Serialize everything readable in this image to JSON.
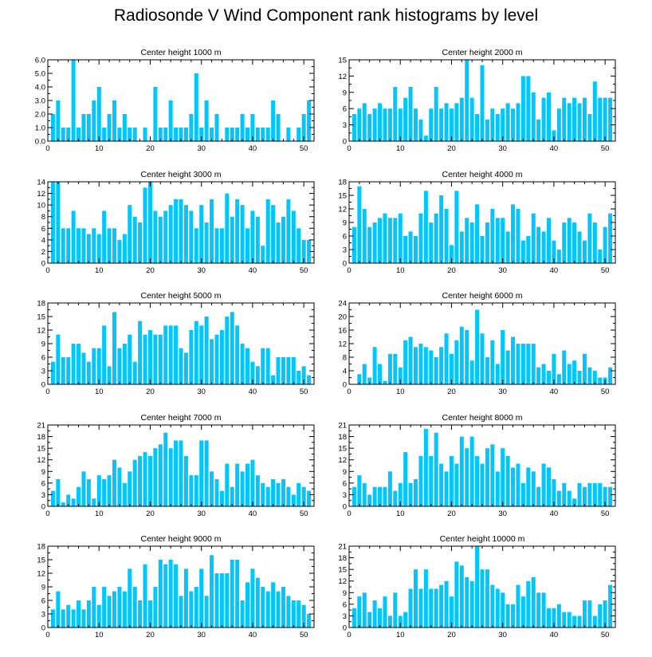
{
  "figure_title": "Radiosonde V Wind Component rank histograms by level",
  "chart_data": [
    {
      "type": "bar",
      "title": "Center height 1000 m",
      "xlabel": "",
      "ylabel": "",
      "xlim": [
        0,
        52
      ],
      "ylim": [
        0,
        6
      ],
      "x_ticks": [
        0,
        10,
        20,
        30,
        40,
        50
      ],
      "y_ticks": [
        0,
        1,
        2,
        3,
        4,
        5,
        6
      ],
      "y_tick_labels": [
        "0.0",
        "1.0",
        "2.0",
        "3.0",
        "4.0",
        "5.0",
        "6.0"
      ],
      "x": [
        1,
        2,
        3,
        4,
        5,
        6,
        7,
        8,
        9,
        10,
        11,
        12,
        13,
        14,
        15,
        16,
        17,
        18,
        19,
        20,
        21,
        22,
        23,
        24,
        25,
        26,
        27,
        28,
        29,
        30,
        31,
        32,
        33,
        34,
        35,
        36,
        37,
        38,
        39,
        40,
        41,
        42,
        43,
        44,
        45,
        46,
        47,
        48,
        49,
        50,
        51
      ],
      "values": [
        2,
        3,
        1,
        1,
        6,
        1,
        2,
        2,
        3,
        4,
        1,
        2,
        3,
        1,
        2,
        1,
        1,
        0,
        1,
        0,
        4,
        1,
        1,
        3,
        1,
        1,
        1,
        2,
        5,
        1,
        3,
        1,
        2,
        0,
        1,
        1,
        1,
        2,
        1,
        2,
        1,
        1,
        1,
        3,
        2,
        0,
        1,
        0,
        1,
        2,
        3
      ]
    },
    {
      "type": "bar",
      "title": "Center height 2000 m",
      "xlabel": "",
      "ylabel": "",
      "xlim": [
        0,
        52
      ],
      "ylim": [
        0,
        15
      ],
      "x_ticks": [
        0,
        10,
        20,
        30,
        40,
        50
      ],
      "y_ticks": [
        0,
        3,
        6,
        9,
        12,
        15
      ],
      "y_tick_labels": [
        "0",
        "3",
        "6",
        "9",
        "12",
        "15"
      ],
      "x": [
        1,
        2,
        3,
        4,
        5,
        6,
        7,
        8,
        9,
        10,
        11,
        12,
        13,
        14,
        15,
        16,
        17,
        18,
        19,
        20,
        21,
        22,
        23,
        24,
        25,
        26,
        27,
        28,
        29,
        30,
        31,
        32,
        33,
        34,
        35,
        36,
        37,
        38,
        39,
        40,
        41,
        42,
        43,
        44,
        45,
        46,
        47,
        48,
        49,
        50,
        51
      ],
      "values": [
        5,
        6,
        7,
        5,
        6,
        7,
        6,
        6,
        10,
        6,
        8,
        10,
        6,
        4,
        1,
        6,
        10,
        6,
        7,
        6,
        7,
        8,
        15,
        8,
        5,
        14,
        4,
        6,
        5,
        6,
        7,
        6,
        7,
        12,
        12,
        9,
        4,
        8,
        9,
        2,
        6,
        8,
        7,
        8,
        7,
        8,
        5,
        11,
        8,
        8,
        8
      ]
    },
    {
      "type": "bar",
      "title": "Center height 3000 m",
      "xlabel": "",
      "ylabel": "",
      "xlim": [
        0,
        52
      ],
      "ylim": [
        0,
        14
      ],
      "x_ticks": [
        0,
        10,
        20,
        30,
        40,
        50
      ],
      "y_ticks": [
        0,
        2,
        4,
        6,
        8,
        10,
        12,
        14
      ],
      "y_tick_labels": [
        "0",
        "2",
        "4",
        "6",
        "8",
        "10",
        "12",
        "14"
      ],
      "x": [
        1,
        2,
        3,
        4,
        5,
        6,
        7,
        8,
        9,
        10,
        11,
        12,
        13,
        14,
        15,
        16,
        17,
        18,
        19,
        20,
        21,
        22,
        23,
        24,
        25,
        26,
        27,
        28,
        29,
        30,
        31,
        32,
        33,
        34,
        35,
        36,
        37,
        38,
        39,
        40,
        41,
        42,
        43,
        44,
        45,
        46,
        47,
        48,
        49,
        50,
        51
      ],
      "values": [
        14,
        14,
        6,
        6,
        9,
        6,
        6,
        5,
        6,
        5,
        9,
        6,
        6,
        4,
        5,
        10,
        8,
        7,
        13,
        14,
        9,
        8,
        9,
        10,
        11,
        11,
        10,
        9,
        6,
        10,
        7,
        11,
        6,
        6,
        12,
        8,
        11,
        10,
        6,
        9,
        8,
        3,
        11,
        10,
        7,
        8,
        11,
        9,
        6,
        4,
        4
      ]
    },
    {
      "type": "bar",
      "title": "Center height 4000 m",
      "xlabel": "",
      "ylabel": "",
      "xlim": [
        0,
        52
      ],
      "ylim": [
        0,
        18
      ],
      "x_ticks": [
        0,
        10,
        20,
        30,
        40,
        50
      ],
      "y_ticks": [
        0,
        3,
        6,
        9,
        12,
        15,
        18
      ],
      "y_tick_labels": [
        "0",
        "3",
        "6",
        "9",
        "12",
        "15",
        "18"
      ],
      "x": [
        1,
        2,
        3,
        4,
        5,
        6,
        7,
        8,
        9,
        10,
        11,
        12,
        13,
        14,
        15,
        16,
        17,
        18,
        19,
        20,
        21,
        22,
        23,
        24,
        25,
        26,
        27,
        28,
        29,
        30,
        31,
        32,
        33,
        34,
        35,
        36,
        37,
        38,
        39,
        40,
        41,
        42,
        43,
        44,
        45,
        46,
        47,
        48,
        49,
        50,
        51
      ],
      "values": [
        8,
        17,
        12,
        8,
        9,
        10,
        11,
        10,
        10,
        11,
        6,
        7,
        6,
        11,
        16,
        9,
        11,
        15,
        12,
        4,
        16,
        7,
        10,
        9,
        13,
        6,
        9,
        12,
        10,
        10,
        7,
        13,
        12,
        5,
        6,
        11,
        8,
        7,
        10,
        5,
        3,
        9,
        10,
        9,
        7,
        5,
        11,
        9,
        3,
        8,
        11
      ]
    },
    {
      "type": "bar",
      "title": "Center height 5000 m",
      "xlabel": "",
      "ylabel": "",
      "xlim": [
        0,
        52
      ],
      "ylim": [
        0,
        18
      ],
      "x_ticks": [
        0,
        10,
        20,
        30,
        40,
        50
      ],
      "y_ticks": [
        0,
        3,
        6,
        9,
        12,
        15,
        18
      ],
      "y_tick_labels": [
        "0",
        "3",
        "6",
        "9",
        "12",
        "15",
        "18"
      ],
      "x": [
        1,
        2,
        3,
        4,
        5,
        6,
        7,
        8,
        9,
        10,
        11,
        12,
        13,
        14,
        15,
        16,
        17,
        18,
        19,
        20,
        21,
        22,
        23,
        24,
        25,
        26,
        27,
        28,
        29,
        30,
        31,
        32,
        33,
        34,
        35,
        36,
        37,
        38,
        39,
        40,
        41,
        42,
        43,
        44,
        45,
        46,
        47,
        48,
        49,
        50,
        51
      ],
      "values": [
        5,
        11,
        6,
        6,
        9,
        9,
        7,
        5,
        8,
        8,
        13,
        4,
        16,
        8,
        9,
        11,
        5,
        14,
        11,
        12,
        11,
        11,
        13,
        13,
        13,
        8,
        7,
        12,
        14,
        13,
        15,
        10,
        11,
        12,
        15,
        16,
        13,
        9,
        8,
        5,
        4,
        8,
        8,
        2,
        6,
        6,
        6,
        6,
        3,
        4,
        2
      ]
    },
    {
      "type": "bar",
      "title": "Center height 6000 m",
      "xlabel": "",
      "ylabel": "",
      "xlim": [
        0,
        52
      ],
      "ylim": [
        0,
        24
      ],
      "x_ticks": [
        0,
        10,
        20,
        30,
        40,
        50
      ],
      "y_ticks": [
        0,
        4,
        8,
        12,
        16,
        20,
        24
      ],
      "y_tick_labels": [
        "0",
        "4",
        "8",
        "12",
        "16",
        "20",
        "24"
      ],
      "x": [
        1,
        2,
        3,
        4,
        5,
        6,
        7,
        8,
        9,
        10,
        11,
        12,
        13,
        14,
        15,
        16,
        17,
        18,
        19,
        20,
        21,
        22,
        23,
        24,
        25,
        26,
        27,
        28,
        29,
        30,
        31,
        32,
        33,
        34,
        35,
        36,
        37,
        38,
        39,
        40,
        41,
        42,
        43,
        44,
        45,
        46,
        47,
        48,
        49,
        50,
        51
      ],
      "values": [
        0,
        3,
        6,
        2,
        11,
        6,
        1,
        9,
        9,
        5,
        13,
        14,
        11,
        12,
        11,
        10,
        8,
        11,
        15,
        9,
        13,
        17,
        16,
        7,
        22,
        15,
        8,
        13,
        6,
        16,
        10,
        14,
        12,
        12,
        12,
        12,
        5,
        6,
        4,
        9,
        3,
        10,
        6,
        7,
        4,
        9,
        5,
        4,
        2,
        2,
        5
      ]
    },
    {
      "type": "bar",
      "title": "Center height 7000 m",
      "xlabel": "",
      "ylabel": "",
      "xlim": [
        0,
        52
      ],
      "ylim": [
        0,
        21
      ],
      "x_ticks": [
        0,
        10,
        20,
        30,
        40,
        50
      ],
      "y_ticks": [
        0,
        3,
        6,
        9,
        12,
        15,
        18,
        21
      ],
      "y_tick_labels": [
        "0",
        "3",
        "6",
        "9",
        "12",
        "15",
        "18",
        "21"
      ],
      "x": [
        1,
        2,
        3,
        4,
        5,
        6,
        7,
        8,
        9,
        10,
        11,
        12,
        13,
        14,
        15,
        16,
        17,
        18,
        19,
        20,
        21,
        22,
        23,
        24,
        25,
        26,
        27,
        28,
        29,
        30,
        31,
        32,
        33,
        34,
        35,
        36,
        37,
        38,
        39,
        40,
        41,
        42,
        43,
        44,
        45,
        46,
        47,
        48,
        49,
        50,
        51
      ],
      "values": [
        4,
        7,
        1,
        3,
        2,
        5,
        9,
        7,
        2,
        8,
        7,
        8,
        12,
        10,
        6,
        9,
        12,
        13,
        14,
        13,
        15,
        16,
        19,
        15,
        17,
        17,
        13,
        8,
        8,
        17,
        17,
        9,
        7,
        4,
        11,
        5,
        11,
        9,
        11,
        12,
        8,
        6,
        5,
        7,
        6,
        7,
        5,
        3,
        6,
        5,
        4
      ]
    },
    {
      "type": "bar",
      "title": "Center height 8000 m",
      "xlabel": "",
      "ylabel": "",
      "xlim": [
        0,
        52
      ],
      "ylim": [
        0,
        21
      ],
      "x_ticks": [
        0,
        10,
        20,
        30,
        40,
        50
      ],
      "y_ticks": [
        0,
        3,
        6,
        9,
        12,
        15,
        18,
        21
      ],
      "y_tick_labels": [
        "0",
        "3",
        "6",
        "9",
        "12",
        "15",
        "18",
        "21"
      ],
      "x": [
        1,
        2,
        3,
        4,
        5,
        6,
        7,
        8,
        9,
        10,
        11,
        12,
        13,
        14,
        15,
        16,
        17,
        18,
        19,
        20,
        21,
        22,
        23,
        24,
        25,
        26,
        27,
        28,
        29,
        30,
        31,
        32,
        33,
        34,
        35,
        36,
        37,
        38,
        39,
        40,
        41,
        42,
        43,
        44,
        45,
        46,
        47,
        48,
        49,
        50,
        51
      ],
      "values": [
        5,
        8,
        6,
        3,
        5,
        5,
        5,
        9,
        4,
        6,
        14,
        6,
        7,
        13,
        20,
        13,
        19,
        11,
        9,
        13,
        11,
        18,
        15,
        18,
        13,
        11,
        15,
        16,
        9,
        15,
        13,
        10,
        11,
        6,
        10,
        9,
        5,
        11,
        10,
        7,
        4,
        6,
        4,
        2,
        6,
        5,
        6,
        6,
        6,
        5,
        5
      ]
    },
    {
      "type": "bar",
      "title": "Center height 9000 m",
      "xlabel": "",
      "ylabel": "",
      "xlim": [
        0,
        52
      ],
      "ylim": [
        0,
        18
      ],
      "x_ticks": [
        0,
        10,
        20,
        30,
        40,
        50
      ],
      "y_ticks": [
        0,
        3,
        6,
        9,
        12,
        15,
        18
      ],
      "y_tick_labels": [
        "0",
        "3",
        "6",
        "9",
        "12",
        "15",
        "18"
      ],
      "x": [
        1,
        2,
        3,
        4,
        5,
        6,
        7,
        8,
        9,
        10,
        11,
        12,
        13,
        14,
        15,
        16,
        17,
        18,
        19,
        20,
        21,
        22,
        23,
        24,
        25,
        26,
        27,
        28,
        29,
        30,
        31,
        32,
        33,
        34,
        35,
        36,
        37,
        38,
        39,
        40,
        41,
        42,
        43,
        44,
        45,
        46,
        47,
        48,
        49,
        50,
        51
      ],
      "values": [
        4,
        8,
        4,
        5,
        4,
        6,
        4,
        6,
        9,
        5,
        9,
        7,
        8,
        9,
        8,
        13,
        9,
        6,
        14,
        6,
        9,
        15,
        14,
        15,
        14,
        7,
        13,
        8,
        9,
        13,
        7,
        16,
        12,
        12,
        12,
        15,
        15,
        6,
        10,
        13,
        11,
        9,
        8,
        10,
        8,
        9,
        7,
        6,
        6,
        5,
        3
      ]
    },
    {
      "type": "bar",
      "title": "Center height 10000 m",
      "xlabel": "",
      "ylabel": "",
      "xlim": [
        0,
        52
      ],
      "ylim": [
        0,
        21
      ],
      "x_ticks": [
        0,
        10,
        20,
        30,
        40,
        50
      ],
      "y_ticks": [
        0,
        3,
        6,
        9,
        12,
        15,
        18,
        21
      ],
      "y_tick_labels": [
        "0",
        "3",
        "6",
        "9",
        "12",
        "15",
        "18",
        "21"
      ],
      "x": [
        1,
        2,
        3,
        4,
        5,
        6,
        7,
        8,
        9,
        10,
        11,
        12,
        13,
        14,
        15,
        16,
        17,
        18,
        19,
        20,
        21,
        22,
        23,
        24,
        25,
        26,
        27,
        28,
        29,
        30,
        31,
        32,
        33,
        34,
        35,
        36,
        37,
        38,
        39,
        40,
        41,
        42,
        43,
        44,
        45,
        46,
        47,
        48,
        49,
        50,
        51
      ],
      "values": [
        5,
        8,
        9,
        4,
        7,
        5,
        8,
        3,
        9,
        3,
        4,
        10,
        15,
        10,
        15,
        10,
        10,
        11,
        12,
        8,
        17,
        16,
        13,
        12,
        21,
        15,
        15,
        11,
        10,
        9,
        6,
        6,
        11,
        8,
        12,
        13,
        9,
        9,
        5,
        5,
        6,
        4,
        4,
        3,
        3,
        7,
        7,
        3,
        6,
        7,
        11
      ]
    }
  ],
  "colors": {
    "bar": "#00c6ff",
    "axis": "#000000",
    "background": "#ffffff"
  }
}
